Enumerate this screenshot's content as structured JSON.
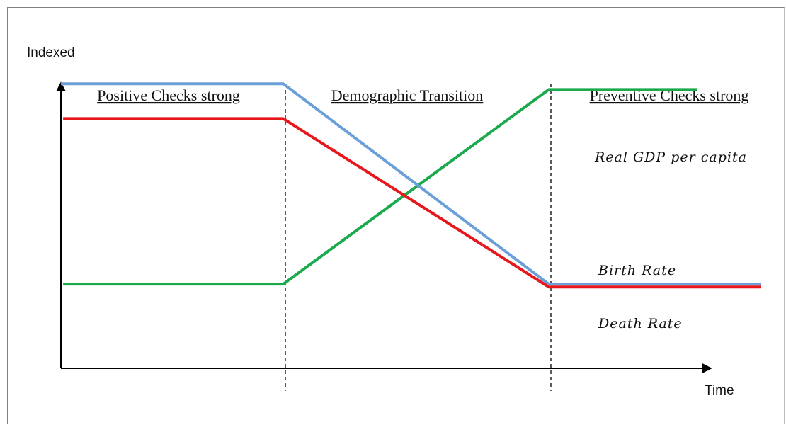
{
  "chart_data": {
    "type": "line",
    "ylabel": "Indexed",
    "xlabel": "Time",
    "xlim": [
      0,
      3
    ],
    "ylim": [
      0,
      10
    ],
    "grid": false,
    "phases": [
      {
        "label": "Positive Checks strong",
        "range": [
          0,
          1
        ]
      },
      {
        "label": "Demographic Transition",
        "range": [
          1,
          2
        ]
      },
      {
        "label": "Preventive Checks strong",
        "range": [
          2,
          3
        ]
      }
    ],
    "phase_boundaries": [
      1,
      2
    ],
    "series": [
      {
        "name": "Birth Rate",
        "color": "#6a9fd8",
        "points": [
          [
            0,
            9.8
          ],
          [
            1,
            9.8
          ],
          [
            2,
            2.9
          ],
          [
            2.8,
            2.9
          ]
        ]
      },
      {
        "name": "Death Rate",
        "color": "#e8171c",
        "points": [
          [
            0.01,
            8.6
          ],
          [
            1,
            8.6
          ],
          [
            2,
            2.8
          ],
          [
            2.8,
            2.8
          ]
        ]
      },
      {
        "name": "Real GDP per capita",
        "color": "#1aaa4d",
        "points": [
          [
            0.01,
            2.9
          ],
          [
            1,
            2.9
          ],
          [
            2,
            9.6
          ],
          [
            2.56,
            9.6
          ]
        ]
      }
    ]
  }
}
